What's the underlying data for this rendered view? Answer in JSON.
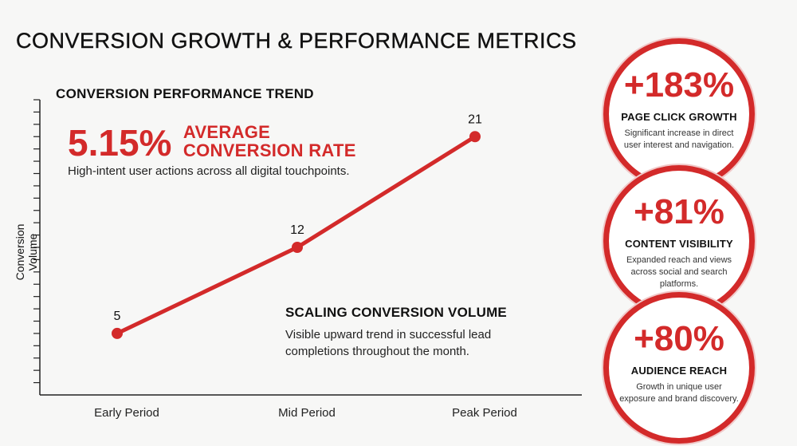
{
  "title": "CONVERSION GROWTH & PERFORMANCE METRICS",
  "chart_data": {
    "type": "line",
    "title": "CONVERSION PERFORMANCE TREND",
    "xlabel": "",
    "ylabel": "Conversion Volume",
    "categories": [
      "Early Period",
      "Mid Period",
      "Peak Period"
    ],
    "values": [
      5,
      12,
      21
    ],
    "data_labels": [
      "5",
      "12",
      "21"
    ],
    "ylim": [
      0,
      24
    ],
    "y_ticks_shown": false,
    "color": "#d32a2a",
    "annotations": {
      "average": {
        "value": "5.15%",
        "label_line1": "AVERAGE",
        "label_line2": "CONVERSION RATE",
        "description": "High-intent user actions across all digital touchpoints."
      },
      "scaling": {
        "title": "SCALING CONVERSION VOLUME",
        "description": "Visible upward trend in successful lead completions throughout the month."
      }
    }
  },
  "metrics": [
    {
      "value": "+183%",
      "label": "PAGE CLICK GROWTH",
      "description": "Significant increase in direct user interest and navigation."
    },
    {
      "value": "+81%",
      "label": "CONTENT VISIBILITY",
      "description": "Expanded reach and views across social and search platforms."
    },
    {
      "value": "+80%",
      "label": "AUDIENCE REACH",
      "description": "Growth in unique user exposure and brand discovery."
    }
  ],
  "colors": {
    "accent": "#d32a2a",
    "background": "#f7f7f6",
    "text": "#111111"
  }
}
